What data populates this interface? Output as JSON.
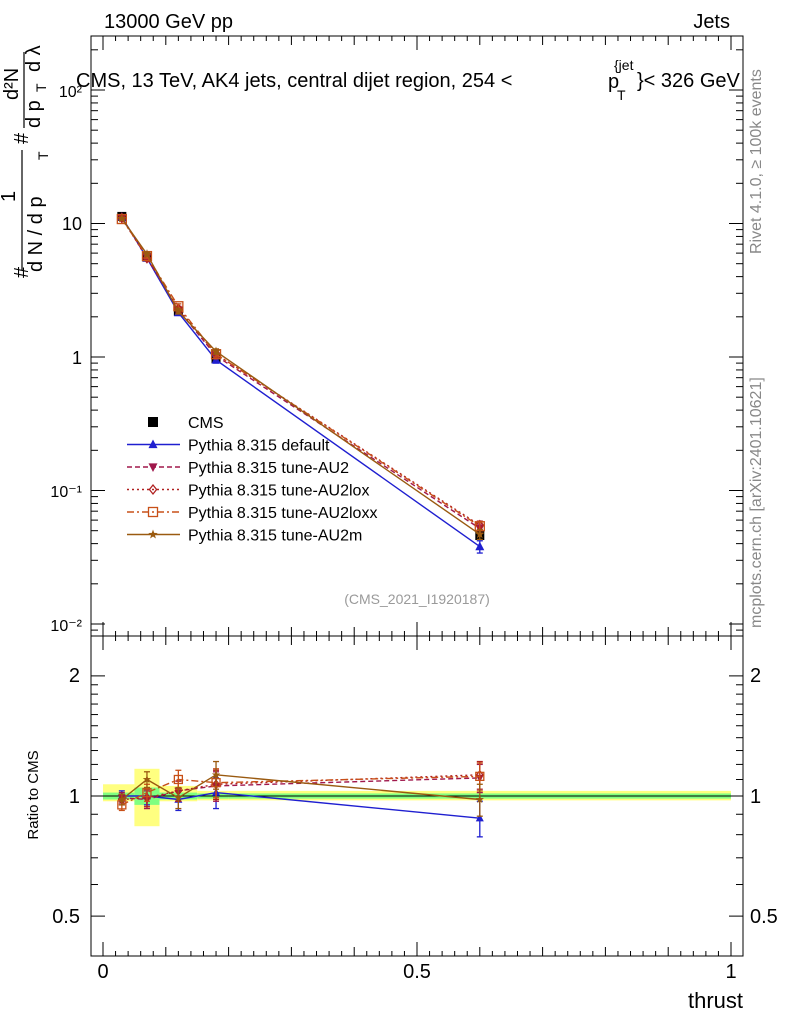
{
  "header": {
    "left": "13000 GeV pp",
    "right": "Jets"
  },
  "main_panel": {
    "title": "CMS, 13 TeV, AK4 jets, central dijet region, 254 <",
    "title_pt": "p",
    "title_pt_sup": "{jet",
    "title_pt_sub": "T",
    "title_end": "}< 326 GeV",
    "ylabel_prefix": "#",
    "ylabel_frac_num": "1",
    "ylabel_frac_den": "d N / d p",
    "ylabel_frac_den_sub": "T",
    "ylabel_hash2": "#",
    "ylabel_d2N": "d²N",
    "ylabel_dpt": "d p",
    "ylabel_dpt_sub": "T",
    "ylabel_dlambda": "d λ",
    "yticks": [
      "10⁻²",
      "10⁻¹",
      "1",
      "10",
      "10²"
    ],
    "watermark": "(CMS_2021_I1920187)"
  },
  "ratio_panel": {
    "ylabel": "Ratio to CMS",
    "yticks_left": [
      "0.5",
      "1",
      "2"
    ],
    "yticks_right": [
      "0.5",
      "1",
      "2"
    ]
  },
  "xaxis": {
    "label": "thrust",
    "ticks": [
      "0",
      "0.5",
      "1"
    ]
  },
  "side_labels": {
    "rivet": "Rivet 4.1.0, ≥ 100k events",
    "mcplots": "mcplots.cern.ch [arXiv:2401.10621]"
  },
  "legend": [
    {
      "name": "CMS",
      "color": "#000000",
      "marker": "square",
      "dash": ""
    },
    {
      "name": "Pythia 8.315 default",
      "color": "#1f1fd0",
      "marker": "triangle-up",
      "dash": ""
    },
    {
      "name": "Pythia 8.315 tune-AU2",
      "color": "#a0184c",
      "marker": "triangle-down",
      "dash": "5,3"
    },
    {
      "name": "Pythia 8.315 tune-AU2lox",
      "color": "#b02020",
      "marker": "diamond-open",
      "dash": "2,3"
    },
    {
      "name": "Pythia 8.315 tune-AU2loxx",
      "color": "#c85018",
      "marker": "square-open",
      "dash": "7,3,2,3"
    },
    {
      "name": "Pythia 8.315 tune-AU2m",
      "color": "#9a5a10",
      "marker": "star",
      "dash": ""
    }
  ],
  "chart_data": [
    {
      "type": "line",
      "title": "CMS, 13 TeV, AK4 jets, central dijet region, 254 < p_T^{jet} < 326 GeV",
      "xlabel": "thrust",
      "ylabel": "1/(dN/dpT) d2N/(dpT dlambda)",
      "yscale": "log",
      "xlim": [
        -0.02,
        1.02
      ],
      "ylim": [
        0.008,
        250
      ],
      "x": [
        0.03,
        0.07,
        0.12,
        0.18,
        0.6
      ],
      "series": [
        {
          "name": "CMS",
          "values": [
            11.3,
            5.6,
            2.2,
            0.97,
            0.046
          ],
          "errors": [
            0.3,
            0.15,
            0.08,
            0.04,
            0.003
          ]
        },
        {
          "name": "Pythia 8.315 default",
          "values": [
            11.2,
            5.5,
            2.15,
            0.95,
            0.038
          ],
          "errors": [
            0.2,
            0.2,
            0.1,
            0.05,
            0.004
          ]
        },
        {
          "name": "Pythia 8.315 tune-AU2",
          "values": [
            11.0,
            5.6,
            2.25,
            1.02,
            0.052
          ],
          "errors": [
            0.2,
            0.2,
            0.1,
            0.05,
            0.004
          ]
        },
        {
          "name": "Pythia 8.315 tune-AU2lox",
          "values": [
            11.0,
            5.5,
            2.3,
            1.05,
            0.055
          ],
          "errors": [
            0.2,
            0.2,
            0.1,
            0.05,
            0.004
          ]
        },
        {
          "name": "Pythia 8.315 tune-AU2loxx",
          "values": [
            10.8,
            5.7,
            2.4,
            1.05,
            0.054
          ],
          "errors": [
            0.2,
            0.2,
            0.1,
            0.05,
            0.004
          ]
        },
        {
          "name": "Pythia 8.315 tune-AU2m",
          "values": [
            10.9,
            5.9,
            2.2,
            1.1,
            0.047
          ],
          "errors": [
            0.2,
            0.2,
            0.1,
            0.05,
            0.004
          ]
        }
      ]
    },
    {
      "type": "line",
      "title": "",
      "xlabel": "thrust",
      "ylabel": "Ratio to CMS",
      "yscale": "log",
      "xlim": [
        -0.02,
        1.02
      ],
      "ylim": [
        0.4,
        2.4
      ],
      "x": [
        0.03,
        0.07,
        0.12,
        0.18,
        0.6
      ],
      "bands": {
        "bin_edges": [
          0.0,
          0.05,
          0.09,
          0.15,
          0.2,
          1.0
        ],
        "stat_low": [
          0.98,
          0.95,
          0.98,
          0.985,
          0.985
        ],
        "stat_high": [
          1.02,
          1.05,
          1.02,
          1.015,
          1.015
        ],
        "total_low": [
          0.97,
          0.84,
          0.97,
          0.975,
          0.975
        ],
        "total_high": [
          1.07,
          1.17,
          1.06,
          1.03,
          1.03
        ]
      },
      "series": [
        {
          "name": "Pythia 8.315 default",
          "values": [
            1.0,
            1.0,
            0.98,
            1.02,
            0.88
          ],
          "errors": [
            0.03,
            0.05,
            0.06,
            0.09,
            0.09
          ]
        },
        {
          "name": "Pythia 8.315 tune-AU2",
          "values": [
            0.99,
            0.98,
            1.03,
            1.06,
            1.11
          ],
          "errors": [
            0.03,
            0.05,
            0.06,
            0.09,
            0.09
          ]
        },
        {
          "name": "Pythia 8.315 tune-AU2lox",
          "values": [
            0.98,
            0.99,
            1.03,
            1.07,
            1.13
          ],
          "errors": [
            0.03,
            0.05,
            0.06,
            0.09,
            0.09
          ]
        },
        {
          "name": "Pythia 8.315 tune-AU2loxx",
          "values": [
            0.95,
            1.02,
            1.1,
            1.08,
            1.12
          ],
          "errors": [
            0.03,
            0.05,
            0.06,
            0.09,
            0.09
          ]
        },
        {
          "name": "Pythia 8.315 tune-AU2m",
          "values": [
            0.98,
            1.1,
            0.99,
            1.13,
            0.98
          ],
          "errors": [
            0.03,
            0.05,
            0.06,
            0.09,
            0.09
          ]
        }
      ]
    }
  ]
}
